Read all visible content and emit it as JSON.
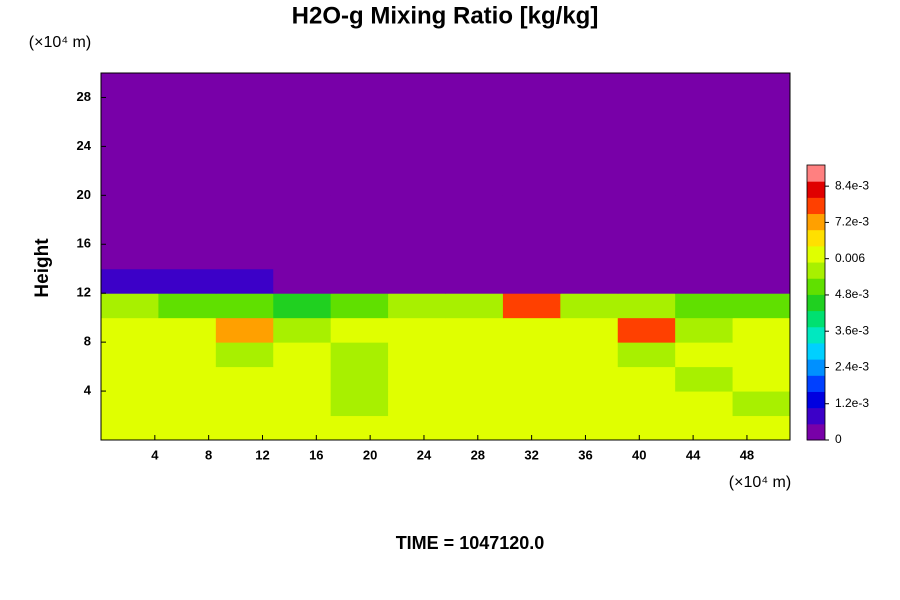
{
  "chart_data": {
    "type": "heatmap",
    "title": "H2O-g Mixing Ratio [kg/kg]",
    "ylabel": "Height",
    "y_unit": "(×10⁴ m)",
    "x_unit": "(×10⁴ m)",
    "footer": "TIME = 1047120.0",
    "xlim": [
      0,
      51.2
    ],
    "ylim": [
      0,
      30
    ],
    "xticks": [
      4,
      8,
      12,
      16,
      20,
      24,
      28,
      32,
      36,
      40,
      44,
      48
    ],
    "yticks": [
      4,
      8,
      12,
      16,
      20,
      24,
      28
    ],
    "zlim": [
      0,
      0.0091
    ],
    "zticks": [
      0,
      {
        "value": 0.0012,
        "label": "1.2e-3"
      },
      {
        "value": 0.0024,
        "label": "2.4e-3"
      },
      {
        "value": 0.0036,
        "label": "3.6e-3"
      },
      {
        "value": 0.0048,
        "label": "4.8e-3"
      },
      0.006,
      {
        "value": 0.0072,
        "label": "7.2e-3"
      },
      {
        "value": 0.0084,
        "label": "8.4e-3"
      }
    ],
    "colormap": [
      "#7800a8",
      "#3c00c8",
      "#0000e0",
      "#0040ff",
      "#0090ff",
      "#00d0ff",
      "#00e8c0",
      "#00e070",
      "#20d020",
      "#60e000",
      "#a8f000",
      "#e0ff00",
      "#ffe000",
      "#ffa000",
      "#ff4000",
      "#e00000",
      "#ff8080"
    ],
    "z": [
      [
        0.0063,
        0.0063,
        0.0063,
        0.0063,
        0.0063,
        0.0063,
        0.0063,
        0.0063,
        0.0063,
        0.0063,
        0.0063,
        0.0063
      ],
      [
        0.0063,
        0.0063,
        0.0063,
        0.0063,
        0.0058,
        0.0063,
        0.0063,
        0.0063,
        0.0063,
        0.0063,
        0.0063,
        0.0058
      ],
      [
        0.0063,
        0.0063,
        0.0063,
        0.0063,
        0.0058,
        0.0063,
        0.0063,
        0.0063,
        0.0063,
        0.0063,
        0.0058,
        0.0063
      ],
      [
        0.0063,
        0.0063,
        0.0058,
        0.0063,
        0.0055,
        0.0063,
        0.0063,
        0.0063,
        0.0063,
        0.0058,
        0.0063,
        0.0063
      ],
      [
        0.0063,
        0.0063,
        0.0072,
        0.0055,
        0.0063,
        0.0063,
        0.0063,
        0.0063,
        0.0063,
        0.0075,
        0.0058,
        0.0063
      ],
      [
        0.0055,
        0.0052,
        0.005,
        0.0045,
        0.005,
        0.0055,
        0.0058,
        0.0075,
        0.0058,
        0.0058,
        0.005,
        0.0052
      ],
      [
        0.0006,
        0.0008,
        0.0009,
        0,
        0,
        0,
        0,
        0,
        0,
        0,
        0.0004,
        0.0005
      ],
      [
        0,
        0,
        0,
        0,
        0,
        0,
        0,
        0,
        0,
        0,
        0,
        0
      ],
      [
        0,
        0,
        0,
        0,
        0,
        0,
        0,
        0,
        0,
        0,
        0,
        0
      ],
      [
        0,
        0,
        0,
        0,
        0,
        0,
        0,
        0,
        0,
        0,
        0,
        0
      ],
      [
        0,
        0,
        0,
        0,
        0,
        0,
        0,
        0,
        0,
        0,
        0,
        0
      ],
      [
        0,
        0,
        0,
        0,
        0,
        0,
        0,
        0,
        0,
        0,
        0,
        0
      ],
      [
        0,
        0,
        0,
        0,
        0,
        0,
        0,
        0,
        0,
        0,
        0,
        0
      ],
      [
        0,
        0,
        0,
        0,
        0,
        0,
        0,
        0,
        0,
        0,
        0,
        0
      ],
      [
        0,
        0,
        0,
        0,
        0,
        0,
        0,
        0,
        0,
        0,
        0,
        0
      ]
    ]
  }
}
